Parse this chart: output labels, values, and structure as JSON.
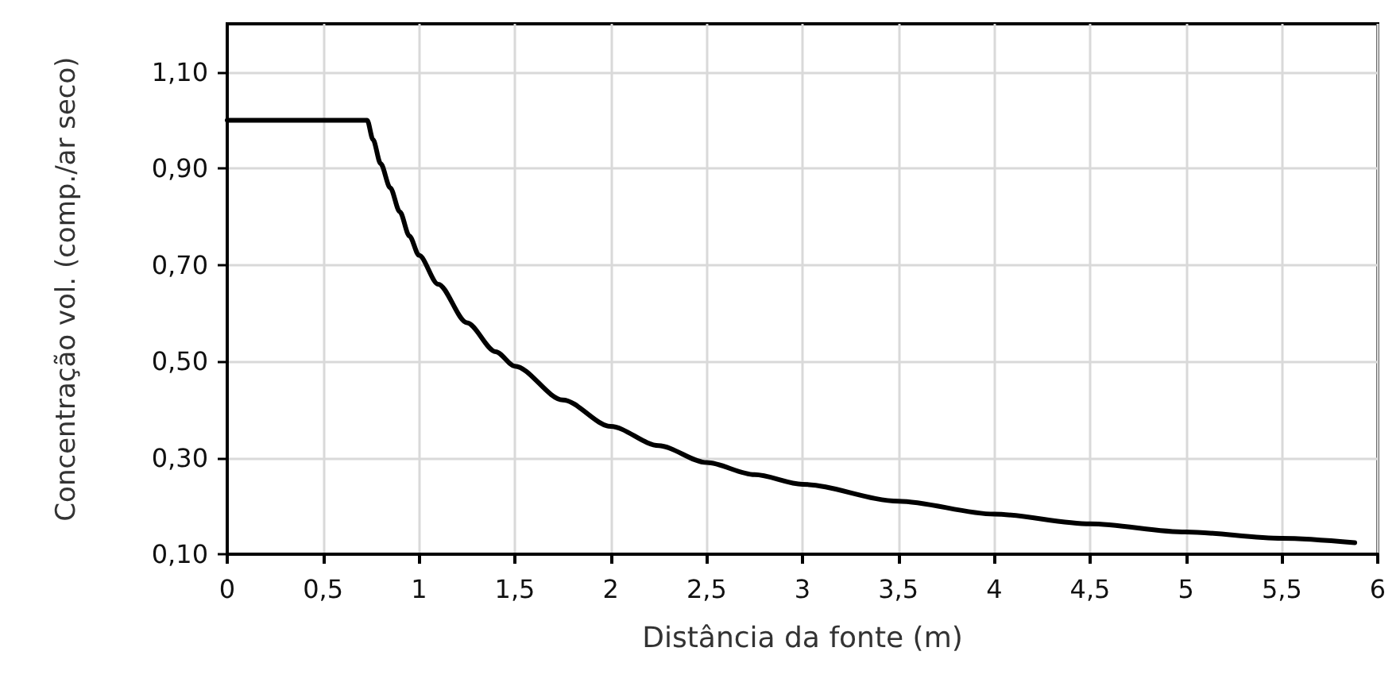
{
  "chart_data": {
    "type": "line",
    "xlabel": "Distância da fonte (m)",
    "ylabel": "Concentração vol. (comp./ar seco)",
    "x": [
      0,
      0.73,
      0.76,
      0.8,
      0.85,
      0.9,
      0.95,
      1,
      1.1,
      1.25,
      1.4,
      1.5,
      1.75,
      2,
      2.25,
      2.5,
      2.75,
      3,
      3.5,
      4,
      4.5,
      5,
      5.5,
      5.88
    ],
    "series": [
      {
        "color": "#000000",
        "values": [
          1.0,
          1.0,
          0.96,
          0.91,
          0.86,
          0.81,
          0.76,
          0.72,
          0.66,
          0.58,
          0.52,
          0.49,
          0.42,
          0.365,
          0.325,
          0.29,
          0.265,
          0.245,
          0.21,
          0.183,
          0.163,
          0.146,
          0.133,
          0.124
        ]
      }
    ],
    "xlim": [
      0,
      6
    ],
    "xticks": [
      0,
      {
        "value": 0.5,
        "label": "0,5"
      },
      1,
      {
        "value": 1.5,
        "label": "1,5"
      },
      2,
      {
        "value": 2.5,
        "label": "2,5"
      },
      3,
      {
        "value": 3.5,
        "label": "3,5"
      },
      4,
      {
        "value": 4.5,
        "label": "4,5"
      },
      5,
      {
        "value": 5.5,
        "label": "5,5"
      },
      6
    ],
    "ylim": [
      0.1,
      1.2
    ],
    "yticks": [
      {
        "value": 0.1,
        "label": "0,10"
      },
      {
        "value": 0.3,
        "label": "0,30"
      },
      {
        "value": 0.5,
        "label": "0,50"
      },
      {
        "value": 0.7,
        "label": "0,70"
      },
      {
        "value": 0.9,
        "label": "0,90"
      },
      {
        "value": 1.1,
        "label": "1,10"
      }
    ],
    "grid": true,
    "marker": "none",
    "line_style": "solid"
  }
}
